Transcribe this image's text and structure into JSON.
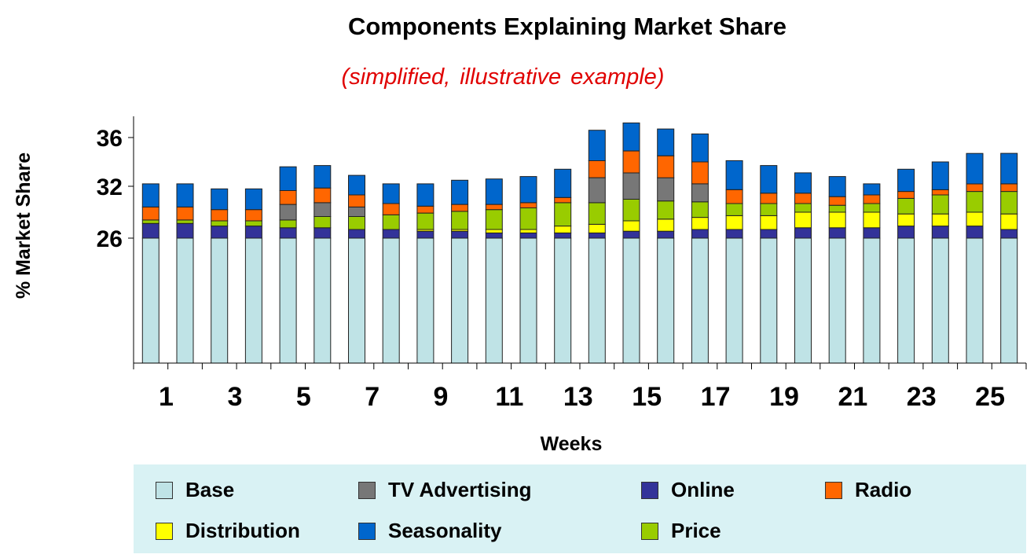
{
  "chart_data": {
    "type": "bar",
    "stacked": true,
    "title": "Components Explaining Market Share",
    "subtitle": "(simplified,  illustrative  example)",
    "xlabel": "Weeks",
    "ylabel": "% Market  Share",
    "y_ticks": [
      26,
      32,
      36
    ],
    "x_ticks": [
      "1",
      "3",
      "5",
      "7",
      "9",
      "11",
      "13",
      "15",
      "17",
      "19",
      "21",
      "23",
      "25"
    ],
    "categories": [
      "1",
      "2",
      "3",
      "4",
      "5",
      "6",
      "7",
      "8",
      "9",
      "10",
      "11",
      "12",
      "13",
      "14",
      "15",
      "16",
      "17",
      "18",
      "19",
      "20",
      "21",
      "22",
      "23",
      "24",
      "25",
      "26"
    ],
    "series": [
      {
        "name": "Base",
        "color": "#bfe3e6",
        "values": [
          26,
          26,
          26,
          26,
          26,
          26,
          26,
          26,
          26,
          26,
          26,
          26,
          26,
          26,
          26,
          26,
          26,
          26,
          26,
          26,
          26,
          26,
          26,
          26,
          26,
          26
        ]
      },
      {
        "name": "Online",
        "color": "#333399",
        "values": [
          1.7,
          1.7,
          1.4,
          1.4,
          1.2,
          1.2,
          1.0,
          1.0,
          0.8,
          0.8,
          0.6,
          0.6,
          0.6,
          0.6,
          0.8,
          0.8,
          1.0,
          1.0,
          1.0,
          1.2,
          1.2,
          1.2,
          1.4,
          1.4,
          1.4,
          1.0
        ]
      },
      {
        "name": "Distribution",
        "color": "#ffff00",
        "values": [
          0,
          0,
          0,
          0,
          0,
          0,
          0,
          0,
          0.2,
          0.2,
          0.4,
          0.4,
          0.8,
          1.0,
          1.2,
          1.4,
          1.4,
          1.6,
          1.6,
          1.8,
          1.8,
          1.8,
          1.4,
          1.4,
          1.6,
          1.8
        ]
      },
      {
        "name": "Price",
        "color": "#99cc00",
        "values": [
          0.4,
          0.4,
          0.6,
          0.6,
          0.9,
          1.3,
          1.5,
          1.7,
          1.9,
          2.1,
          2.3,
          2.5,
          2.7,
          2.5,
          2.5,
          2.1,
          1.8,
          1.4,
          1.4,
          1.0,
          0.8,
          1.0,
          1.8,
          2.2,
          2.4,
          2.6
        ]
      },
      {
        "name": "TV Advertising",
        "color": "#777777",
        "values": [
          0,
          0,
          0,
          0,
          1.8,
          1.6,
          1.1,
          0,
          0,
          0,
          0,
          0,
          0,
          2.6,
          2.6,
          2.4,
          2.0,
          0,
          0,
          0,
          0,
          0,
          0,
          0,
          0,
          0
        ]
      },
      {
        "name": "Radio",
        "color": "#ff6600",
        "values": [
          1.5,
          1.5,
          1.3,
          1.3,
          1.6,
          1.7,
          1.4,
          1.3,
          0.8,
          0.8,
          0.6,
          0.6,
          0.6,
          1.4,
          1.8,
          1.8,
          1.8,
          1.6,
          1.2,
          1.2,
          1.0,
          1.0,
          0.8,
          0.6,
          0.8,
          0.8
        ]
      },
      {
        "name": "Seasonality",
        "color": "#0066cc",
        "values": [
          2.6,
          2.6,
          2.4,
          2.4,
          2.1,
          1.9,
          1.9,
          2.2,
          2.5,
          2.6,
          2.7,
          2.7,
          2.7,
          2.5,
          2.3,
          2.2,
          2.3,
          2.5,
          2.5,
          1.9,
          2.0,
          1.2,
          2.0,
          2.4,
          2.5,
          2.5
        ]
      }
    ],
    "legend_order": [
      "Base",
      "TV Advertising",
      "Online",
      "Radio",
      "Distribution",
      "Seasonality",
      "Price"
    ],
    "legend_position": "bottom",
    "grid": false
  }
}
